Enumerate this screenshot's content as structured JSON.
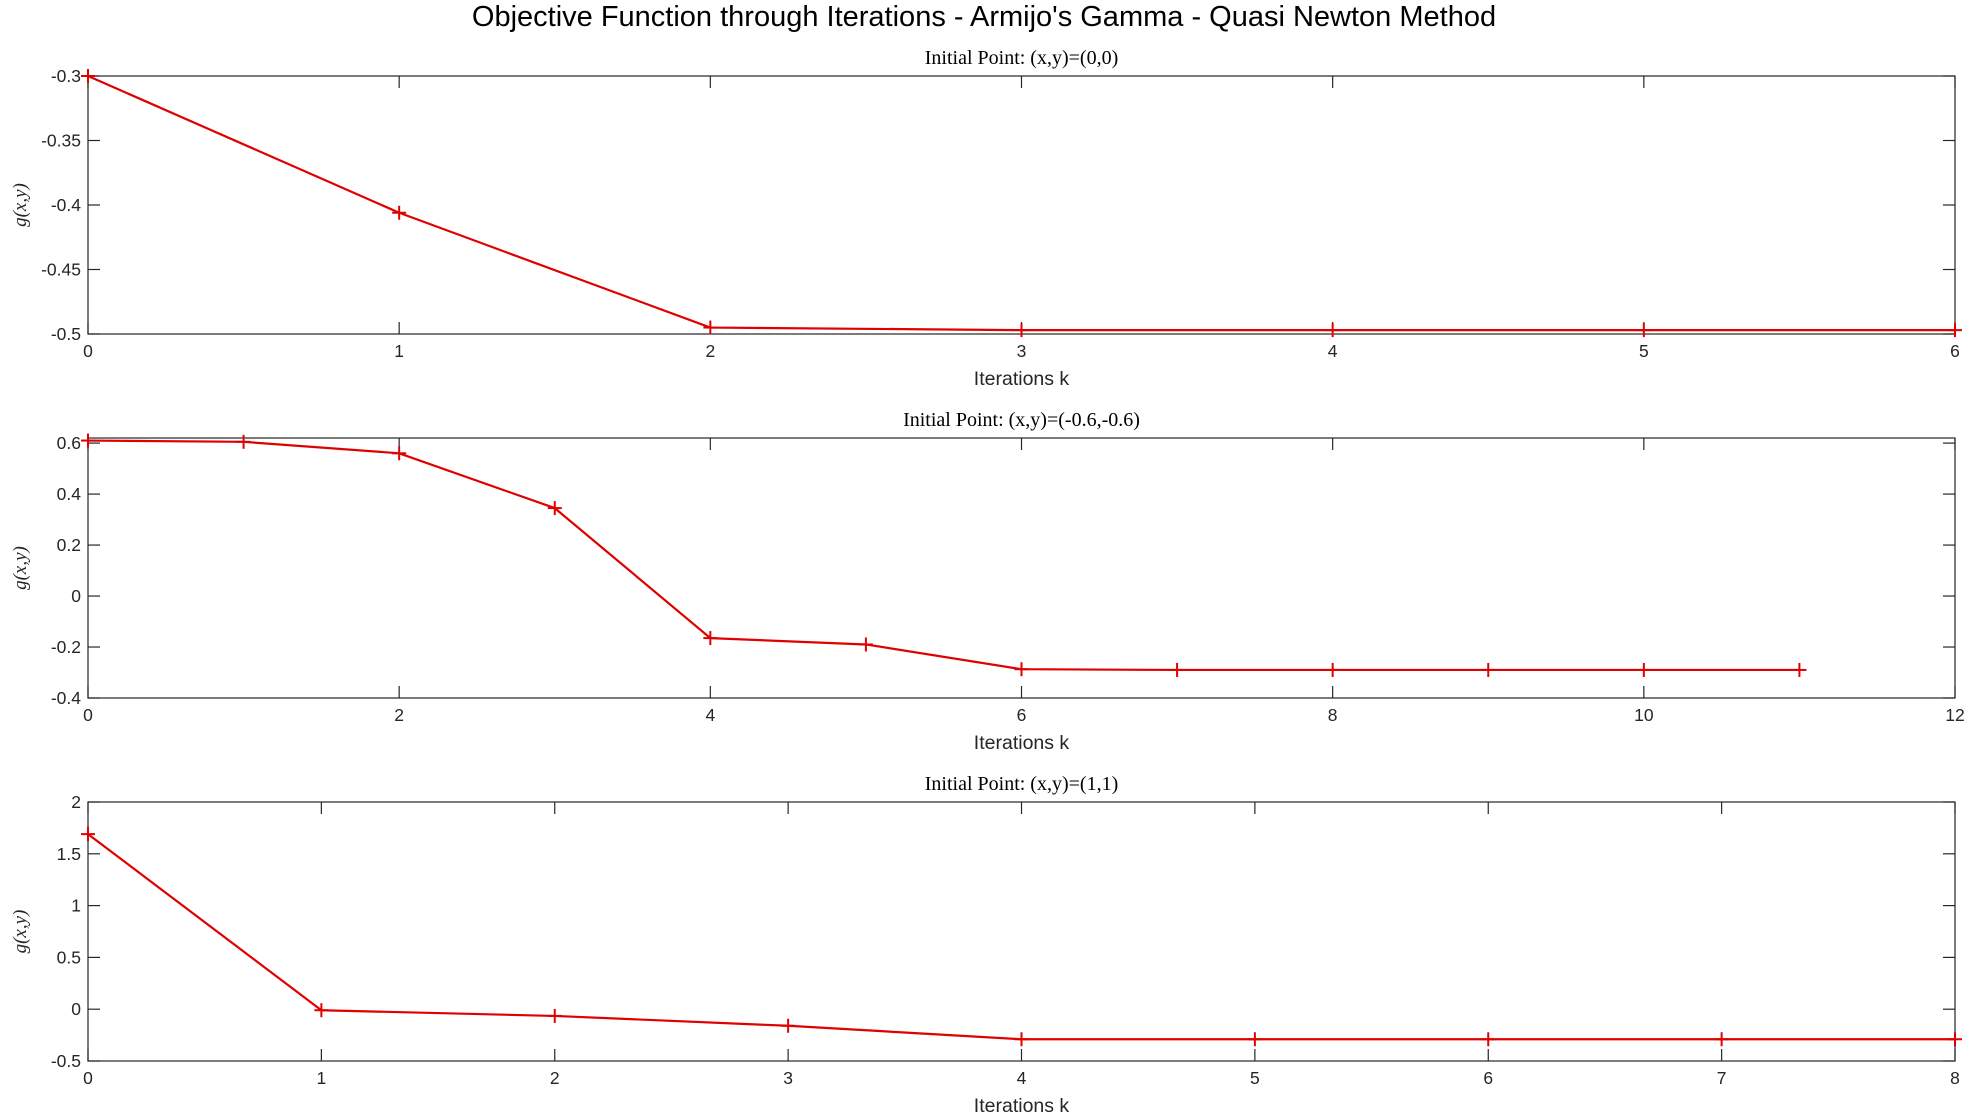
{
  "figure": {
    "title": "Objective Function through Iterations - Armijo's Gamma - Quasi Newton Method"
  },
  "colors": {
    "series": "#e00000",
    "axis": "#262626"
  },
  "chart_data": [
    {
      "type": "line",
      "title": "Initial Point: (x,y)=(0,0)",
      "xlabel": "Iterations k",
      "ylabel": "g(x,y)",
      "xlim": [
        0,
        6
      ],
      "ylim": [
        -0.5,
        -0.3
      ],
      "xticks": [
        0,
        1,
        2,
        3,
        4,
        5,
        6
      ],
      "xtick_labels": [
        "0",
        "1",
        "2",
        "3",
        "4",
        "5",
        "6"
      ],
      "yticks": [
        -0.3,
        -0.35,
        -0.4,
        -0.45,
        -0.5
      ],
      "ytick_labels": [
        "-0.3",
        "-0.35",
        "-0.4",
        "-0.45",
        "-0.5"
      ],
      "marker": "+",
      "x": [
        0,
        1,
        2,
        3,
        4,
        5,
        6
      ],
      "y": [
        -0.3,
        -0.406,
        -0.495,
        -0.497,
        -0.497,
        -0.497,
        -0.497
      ]
    },
    {
      "type": "line",
      "title": "Initial Point: (x,y)=(-0.6,-0.6)",
      "xlabel": "Iterations k",
      "ylabel": "g(x,y)",
      "xlim": [
        0,
        12
      ],
      "ylim": [
        -0.4,
        0.62
      ],
      "xticks": [
        0,
        2,
        4,
        6,
        8,
        10,
        12
      ],
      "xtick_labels": [
        "0",
        "2",
        "4",
        "6",
        "8",
        "10",
        "12"
      ],
      "yticks": [
        0.6,
        0.4,
        0.2,
        0,
        -0.2,
        -0.4
      ],
      "ytick_labels": [
        "0.6",
        "0.4",
        "0.2",
        "0",
        "-0.2",
        "-0.4"
      ],
      "marker": "+",
      "x": [
        0,
        1,
        2,
        3,
        4,
        5,
        6,
        7,
        8,
        9,
        10,
        11
      ],
      "y": [
        0.61,
        0.605,
        0.56,
        0.345,
        -0.165,
        -0.19,
        -0.287,
        -0.29,
        -0.29,
        -0.29,
        -0.29,
        -0.29
      ]
    },
    {
      "type": "line",
      "title": "Initial Point: (x,y)=(1,1)",
      "xlabel": "Iterations k",
      "ylabel": "g(x,y)",
      "xlim": [
        0,
        8
      ],
      "ylim": [
        -0.5,
        2
      ],
      "xticks": [
        0,
        1,
        2,
        3,
        4,
        5,
        6,
        7,
        8
      ],
      "xtick_labels": [
        "0",
        "1",
        "2",
        "3",
        "4",
        "5",
        "6",
        "7",
        "8"
      ],
      "yticks": [
        2,
        1.5,
        1,
        0.5,
        0,
        -0.5
      ],
      "ytick_labels": [
        "2",
        "1.5",
        "1",
        "0.5",
        "0",
        "-0.5"
      ],
      "marker": "+",
      "x": [
        0,
        1,
        2,
        3,
        4,
        5,
        6,
        7,
        8
      ],
      "y": [
        1.69,
        -0.01,
        -0.065,
        -0.16,
        -0.29,
        -0.29,
        -0.29,
        -0.29,
        -0.29
      ]
    }
  ]
}
